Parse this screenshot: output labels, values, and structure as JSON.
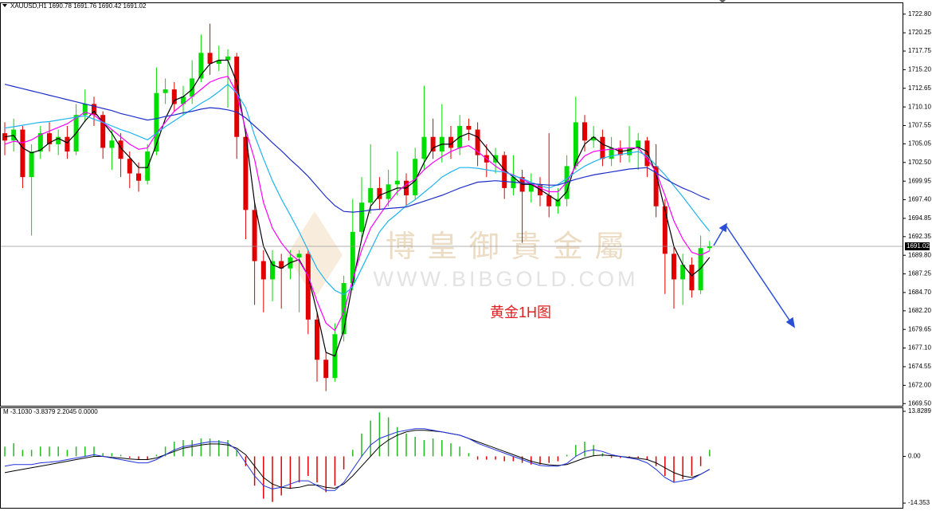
{
  "chart_data": {
    "type": "candlestick",
    "symbol": "XAUUSD,H1",
    "up_color": "#00dd00",
    "down_color": "#e00000",
    "open": [
      1706.5,
      1705.5,
      1707.0,
      1700.5,
      1704.0,
      1706.5,
      1705.0,
      1706.0,
      1704.0,
      1709.0,
      1710.5,
      1709.0,
      1704.5,
      1705.5,
      1703.0,
      1701.0,
      1700.0,
      1704.0,
      1712.0,
      1712.5,
      1710.5,
      1711.5,
      1714.0,
      1717.5,
      1716.0,
      1716.5,
      1717.0,
      1706.0,
      1696.0,
      1689.0,
      1686.5,
      1689.0,
      1688.0,
      1689.5,
      1690.0,
      1681.0,
      1675.5,
      1673.0,
      1679.0,
      1686.0,
      1693.0,
      1697.0,
      1699.0,
      1697.5,
      1699.5,
      1700.0,
      1698.0,
      1703.0,
      1706.0,
      1704.0,
      1706.0,
      1704.5,
      1707.5,
      1707.0,
      1703.5,
      1702.5,
      1703.5,
      1699.0,
      1700.5,
      1698.5,
      1699.5,
      1698.0,
      1696.5,
      1697.5,
      1702.0,
      1708.0,
      1705.5,
      1706.0,
      1703.0,
      1704.5,
      1703.5,
      1704.5,
      1705.5,
      1702.0,
      1696.5,
      1690.0,
      1686.5,
      1688.5,
      1685.0,
      1690.78
    ],
    "high": [
      1708.0,
      1708.5,
      1707.5,
      1705.0,
      1707.5,
      1708.0,
      1707.0,
      1707.5,
      1710.5,
      1712.5,
      1711.5,
      1709.5,
      1707.0,
      1706.5,
      1704.0,
      1702.5,
      1705.0,
      1715.5,
      1714.0,
      1713.5,
      1713.0,
      1716.5,
      1720.0,
      1721.5,
      1718.5,
      1718.0,
      1717.5,
      1707.0,
      1697.0,
      1690.5,
      1690.5,
      1690.0,
      1690.5,
      1690.5,
      1690.5,
      1682.0,
      1676.5,
      1680.5,
      1687.0,
      1697.5,
      1700.5,
      1705.0,
      1700.5,
      1701.5,
      1704.0,
      1701.0,
      1704.5,
      1713.0,
      1708.5,
      1710.5,
      1707.5,
      1709.0,
      1708.5,
      1708.0,
      1705.0,
      1704.5,
      1704.0,
      1703.5,
      1701.5,
      1701.0,
      1700.5,
      1706.5,
      1699.0,
      1703.5,
      1711.5,
      1709.0,
      1707.5,
      1707.0,
      1706.0,
      1705.5,
      1707.5,
      1706.5,
      1706.0,
      1705.0,
      1697.5,
      1691.0,
      1690.0,
      1689.5,
      1692.5,
      1691.76
    ],
    "low": [
      1703.5,
      1704.0,
      1699.0,
      1692.5,
      1703.0,
      1704.0,
      1703.5,
      1703.0,
      1703.5,
      1708.0,
      1707.5,
      1703.0,
      1701.5,
      1700.5,
      1699.0,
      1698.5,
      1699.5,
      1703.5,
      1710.5,
      1709.5,
      1709.0,
      1710.5,
      1713.5,
      1714.5,
      1715.0,
      1710.0,
      1703.0,
      1692.0,
      1683.0,
      1682.0,
      1683.5,
      1682.5,
      1686.5,
      1682.0,
      1679.0,
      1672.5,
      1671.2,
      1672.5,
      1678.0,
      1685.0,
      1692.0,
      1695.5,
      1696.0,
      1696.5,
      1698.0,
      1696.5,
      1697.5,
      1701.5,
      1703.0,
      1702.5,
      1703.0,
      1703.5,
      1705.5,
      1702.0,
      1700.5,
      1701.0,
      1697.5,
      1698.0,
      1691.5,
      1697.0,
      1696.5,
      1695.0,
      1695.5,
      1696.5,
      1701.5,
      1704.0,
      1704.5,
      1702.0,
      1702.0,
      1702.5,
      1702.5,
      1701.5,
      1700.5,
      1695.0,
      1684.5,
      1682.5,
      1683.0,
      1684.0,
      1684.5,
      1690.42
    ],
    "close": [
      1705.5,
      1707.0,
      1700.5,
      1704.0,
      1706.5,
      1705.0,
      1706.0,
      1704.0,
      1709.0,
      1710.5,
      1709.0,
      1704.5,
      1705.5,
      1703.0,
      1701.0,
      1700.0,
      1704.0,
      1712.0,
      1712.5,
      1710.5,
      1711.5,
      1714.0,
      1717.5,
      1716.0,
      1716.5,
      1717.0,
      1706.0,
      1696.0,
      1689.0,
      1686.5,
      1689.0,
      1688.0,
      1689.5,
      1690.0,
      1681.0,
      1675.5,
      1673.0,
      1679.0,
      1686.0,
      1693.0,
      1697.0,
      1699.0,
      1697.5,
      1699.5,
      1700.0,
      1698.0,
      1703.0,
      1706.0,
      1704.0,
      1706.0,
      1704.5,
      1707.5,
      1707.0,
      1703.5,
      1702.5,
      1703.5,
      1699.0,
      1700.5,
      1698.5,
      1699.5,
      1698.0,
      1696.5,
      1697.5,
      1702.0,
      1708.0,
      1705.5,
      1706.0,
      1703.0,
      1704.5,
      1703.5,
      1704.5,
      1705.5,
      1702.0,
      1696.5,
      1690.0,
      1686.5,
      1688.5,
      1685.0,
      1690.78,
      1691.02
    ],
    "series": [
      {
        "color": "#000000",
        "values": [
          1706.0,
          1706.2,
          1704.5,
          1703.8,
          1704.2,
          1705.2,
          1705.8,
          1705.2,
          1706.5,
          1708.2,
          1709.5,
          1708.0,
          1706.5,
          1704.5,
          1703.2,
          1701.8,
          1701.8,
          1705.0,
          1708.5,
          1711.0,
          1711.5,
          1712.5,
          1714.5,
          1716.0,
          1716.5,
          1716.5,
          1713.5,
          1706.5,
          1697.0,
          1691.0,
          1688.5,
          1688.0,
          1688.8,
          1689.2,
          1687.0,
          1682.0,
          1676.5,
          1676.0,
          1679.5,
          1686.0,
          1692.0,
          1696.5,
          1698.0,
          1698.5,
          1699.0,
          1699.0,
          1700.0,
          1702.5,
          1704.5,
          1705.0,
          1705.0,
          1706.0,
          1706.5,
          1706.0,
          1704.5,
          1703.0,
          1701.5,
          1700.5,
          1699.5,
          1699.5,
          1698.8,
          1698.0,
          1697.2,
          1698.5,
          1702.5,
          1705.0,
          1706.0,
          1705.0,
          1704.5,
          1704.0,
          1704.2,
          1704.6,
          1704.0,
          1701.0,
          1696.0,
          1691.0,
          1688.5,
          1687.0,
          1688.0,
          1689.5
        ]
      },
      {
        "color": "#ff00ff",
        "values": [
          1705.0,
          1705.4,
          1705.2,
          1705.6,
          1706.3,
          1706.8,
          1707.3,
          1707.8,
          1708.6,
          1709.4,
          1709.0,
          1708.0,
          1707.0,
          1706.0,
          1705.0,
          1704.3,
          1704.5,
          1706.5,
          1708.0,
          1709.5,
          1710.5,
          1711.5,
          1712.5,
          1713.5,
          1714.0,
          1714.3,
          1712.0,
          1707.0,
          1702.9,
          1697.0,
          1693.5,
          1691.5,
          1690.0,
          1689.0,
          1687.0,
          1683.5,
          1680.5,
          1679.5,
          1682.0,
          1686.5,
          1690.5,
          1693.5,
          1695.3,
          1697.0,
          1698.5,
          1699.5,
          1700.2,
          1701.5,
          1702.5,
          1703.3,
          1704.0,
          1704.5,
          1704.8,
          1704.0,
          1703.0,
          1702.0,
          1701.2,
          1700.8,
          1700.2,
          1699.6,
          1699.0,
          1698.5,
          1698.5,
          1699.8,
          1702.0,
          1703.4,
          1704.0,
          1704.2,
          1704.3,
          1704.4,
          1704.5,
          1704.5,
          1703.0,
          1701.2,
          1698.0,
          1694.5,
          1692.0,
          1690.2,
          1689.8,
          1690.4
        ]
      },
      {
        "color": "#1fb4f0",
        "values": [
          1707.2,
          1707.4,
          1707.6,
          1707.8,
          1708.0,
          1708.1,
          1708.3,
          1708.5,
          1708.7,
          1708.9,
          1708.4,
          1708.0,
          1707.5,
          1707.0,
          1706.6,
          1706.1,
          1705.6,
          1706.5,
          1707.4,
          1708.2,
          1709.0,
          1709.8,
          1710.6,
          1711.3,
          1712.2,
          1713.2,
          1712.0,
          1710.0,
          1706.2,
          1703.0,
          1700.0,
          1697.5,
          1695.3,
          1693.0,
          1690.5,
          1688.0,
          1686.3,
          1685.0,
          1684.4,
          1685.5,
          1688.0,
          1690.5,
          1693.0,
          1694.5,
          1695.5,
          1696.6,
          1697.4,
          1698.4,
          1699.4,
          1700.5,
          1701.2,
          1701.8,
          1701.8,
          1701.7,
          1701.5,
          1701.3,
          1701.2,
          1700.7,
          1700.3,
          1699.8,
          1699.3,
          1699.0,
          1699.5,
          1700.3,
          1701.2,
          1702.0,
          1702.6,
          1703.1,
          1703.4,
          1703.6,
          1703.8,
          1704.0,
          1703.4,
          1702.1,
          1700.8,
          1699.3,
          1697.8,
          1696.2,
          1694.6,
          1693.1
        ]
      },
      {
        "color": "#1e2fc8",
        "values": [
          1713.2,
          1712.9,
          1712.6,
          1712.3,
          1712.0,
          1711.7,
          1711.4,
          1711.1,
          1710.8,
          1710.5,
          1710.2,
          1709.9,
          1709.6,
          1709.2,
          1708.9,
          1708.6,
          1708.3,
          1708.5,
          1708.8,
          1709.0,
          1709.3,
          1709.5,
          1709.8,
          1710.0,
          1709.9,
          1709.7,
          1709.4,
          1708.6,
          1707.5,
          1706.4,
          1705.2,
          1704.1,
          1702.9,
          1701.8,
          1700.6,
          1699.2,
          1697.8,
          1696.6,
          1695.8,
          1695.7,
          1695.8,
          1696.0,
          1696.1,
          1696.2,
          1696.3,
          1696.4,
          1696.8,
          1697.2,
          1697.6,
          1698.0,
          1698.5,
          1699.0,
          1699.4,
          1699.8,
          1699.9,
          1700.0,
          1699.9,
          1699.8,
          1699.7,
          1699.6,
          1699.5,
          1699.4,
          1699.4,
          1699.8,
          1700.2,
          1700.5,
          1700.8,
          1701.0,
          1701.2,
          1701.4,
          1701.6,
          1701.7,
          1701.8,
          1701.1,
          1700.3,
          1699.6,
          1699.0,
          1698.5,
          1697.9,
          1697.4
        ]
      }
    ],
    "ylim": [
      1669.2,
      1724.3
    ],
    "yticks": [
      {
        "value": 1722.8,
        "label": "1722.80"
      },
      1720.25,
      1717.75,
      {
        "value": 1715.2,
        "label": "1715.20"
      },
      1712.65,
      {
        "value": 1710.1,
        "label": "1710.10"
      },
      1707.55,
      1705.05,
      {
        "value": 1702.5,
        "label": "1702.50"
      },
      1699.95,
      {
        "value": 1697.4,
        "label": "1697.40"
      },
      1694.85,
      1692.35,
      {
        "value": 1689.8,
        "label": "1689.80"
      },
      1687.25,
      {
        "value": 1684.7,
        "label": "1684.70"
      },
      {
        "value": 1682.2,
        "label": "1682.20"
      },
      1679.65,
      {
        "value": 1677.1,
        "label": "1677.10"
      },
      1674.55,
      {
        "value": 1672,
        "label": "1672.00"
      },
      {
        "value": 1669.5,
        "label": "1669.50"
      }
    ],
    "annotation": "黄金1H图",
    "watermark": {
      "title": "博 皇 御 貴 金 屬",
      "url": "WWW.BIBGOLD.COM"
    },
    "indicator": {
      "label": "M -3.1030 -3.8379 2.2045 0.0000",
      "ylim": [
        -15.8,
        14.8
      ],
      "yticks": [
        13.8289,
        {
          "value": 0,
          "label": "0.00"
        },
        -14.353
      ],
      "up_color": "#22bb22",
      "down_color": "#e00000",
      "histogram": [
        3,
        4,
        2,
        2,
        3,
        3,
        3,
        2,
        3,
        3,
        3,
        1,
        1,
        0.5,
        -0.5,
        -1,
        -1,
        0.5,
        3,
        4.5,
        5,
        5,
        5.5,
        5.5,
        5,
        5,
        2,
        -3,
        -9,
        -13,
        -14,
        -12,
        -10,
        -8,
        -6,
        -8,
        -11,
        -9,
        -4,
        2,
        7,
        11,
        13.5,
        12,
        9,
        7,
        6,
        5,
        5.5,
        5,
        4,
        3,
        1,
        -1,
        -1,
        -1,
        -1.5,
        -1.5,
        -2,
        -2.5,
        -2.5,
        -2,
        -1.5,
        0.5,
        3.5,
        4.5,
        3.5,
        1,
        -0.5,
        -0.5,
        -0.5,
        -0.5,
        -1,
        -3,
        -6,
        -8,
        -7,
        -6,
        -3,
        2
      ],
      "lines": [
        {
          "color": "#000000",
          "values": [
            -5,
            -4.5,
            -4,
            -3.5,
            -3,
            -2.5,
            -2,
            -1.5,
            -1,
            -0.5,
            0,
            0,
            -0.3,
            -0.5,
            -0.8,
            -1,
            -1,
            -0.5,
            0.5,
            1.5,
            2.5,
            3,
            3.5,
            3.8,
            3.8,
            3.5,
            2.5,
            0.5,
            -3,
            -6.5,
            -8.5,
            -9.5,
            -9.8,
            -9.5,
            -8.8,
            -8.8,
            -9.5,
            -9.8,
            -8.5,
            -6,
            -3,
            0,
            3,
            5,
            6.5,
            7.5,
            8,
            8,
            7.8,
            7.5,
            7,
            6.5,
            5.5,
            4.5,
            3.5,
            2.5,
            1.5,
            0.5,
            -0.5,
            -1.5,
            -2.2,
            -2.6,
            -2.8,
            -2.5,
            -1.5,
            -0.5,
            0.2,
            0.4,
            0.2,
            0,
            -0.3,
            -0.6,
            -1,
            -2,
            -3.5,
            -5,
            -6,
            -6.5,
            -5.5,
            -4
          ]
        },
        {
          "color": "#2233dd",
          "values": [
            -3,
            -2.5,
            -2.5,
            -2.5,
            -2,
            -1.8,
            -1.5,
            -1,
            -0.5,
            0,
            0.5,
            0,
            -0.5,
            -1,
            -1.5,
            -2,
            -2,
            -1,
            0.5,
            2,
            3,
            3.5,
            4,
            4.5,
            4.5,
            4,
            2,
            -2,
            -6,
            -9,
            -10,
            -9.5,
            -8.5,
            -7.5,
            -7.5,
            -9,
            -10.5,
            -10.5,
            -8,
            -4,
            0,
            3.5,
            5.5,
            6.5,
            7.5,
            8,
            8.5,
            8.5,
            8,
            7.5,
            7,
            6.5,
            5.5,
            4,
            3,
            2,
            1,
            0,
            -1,
            -2,
            -2.8,
            -3,
            -3,
            -2.2,
            0,
            1.5,
            2,
            1.5,
            0.5,
            0,
            -0.5,
            -1,
            -2,
            -4,
            -6.5,
            -8,
            -7.5,
            -7,
            -5.5,
            -4
          ]
        }
      ]
    }
  }
}
